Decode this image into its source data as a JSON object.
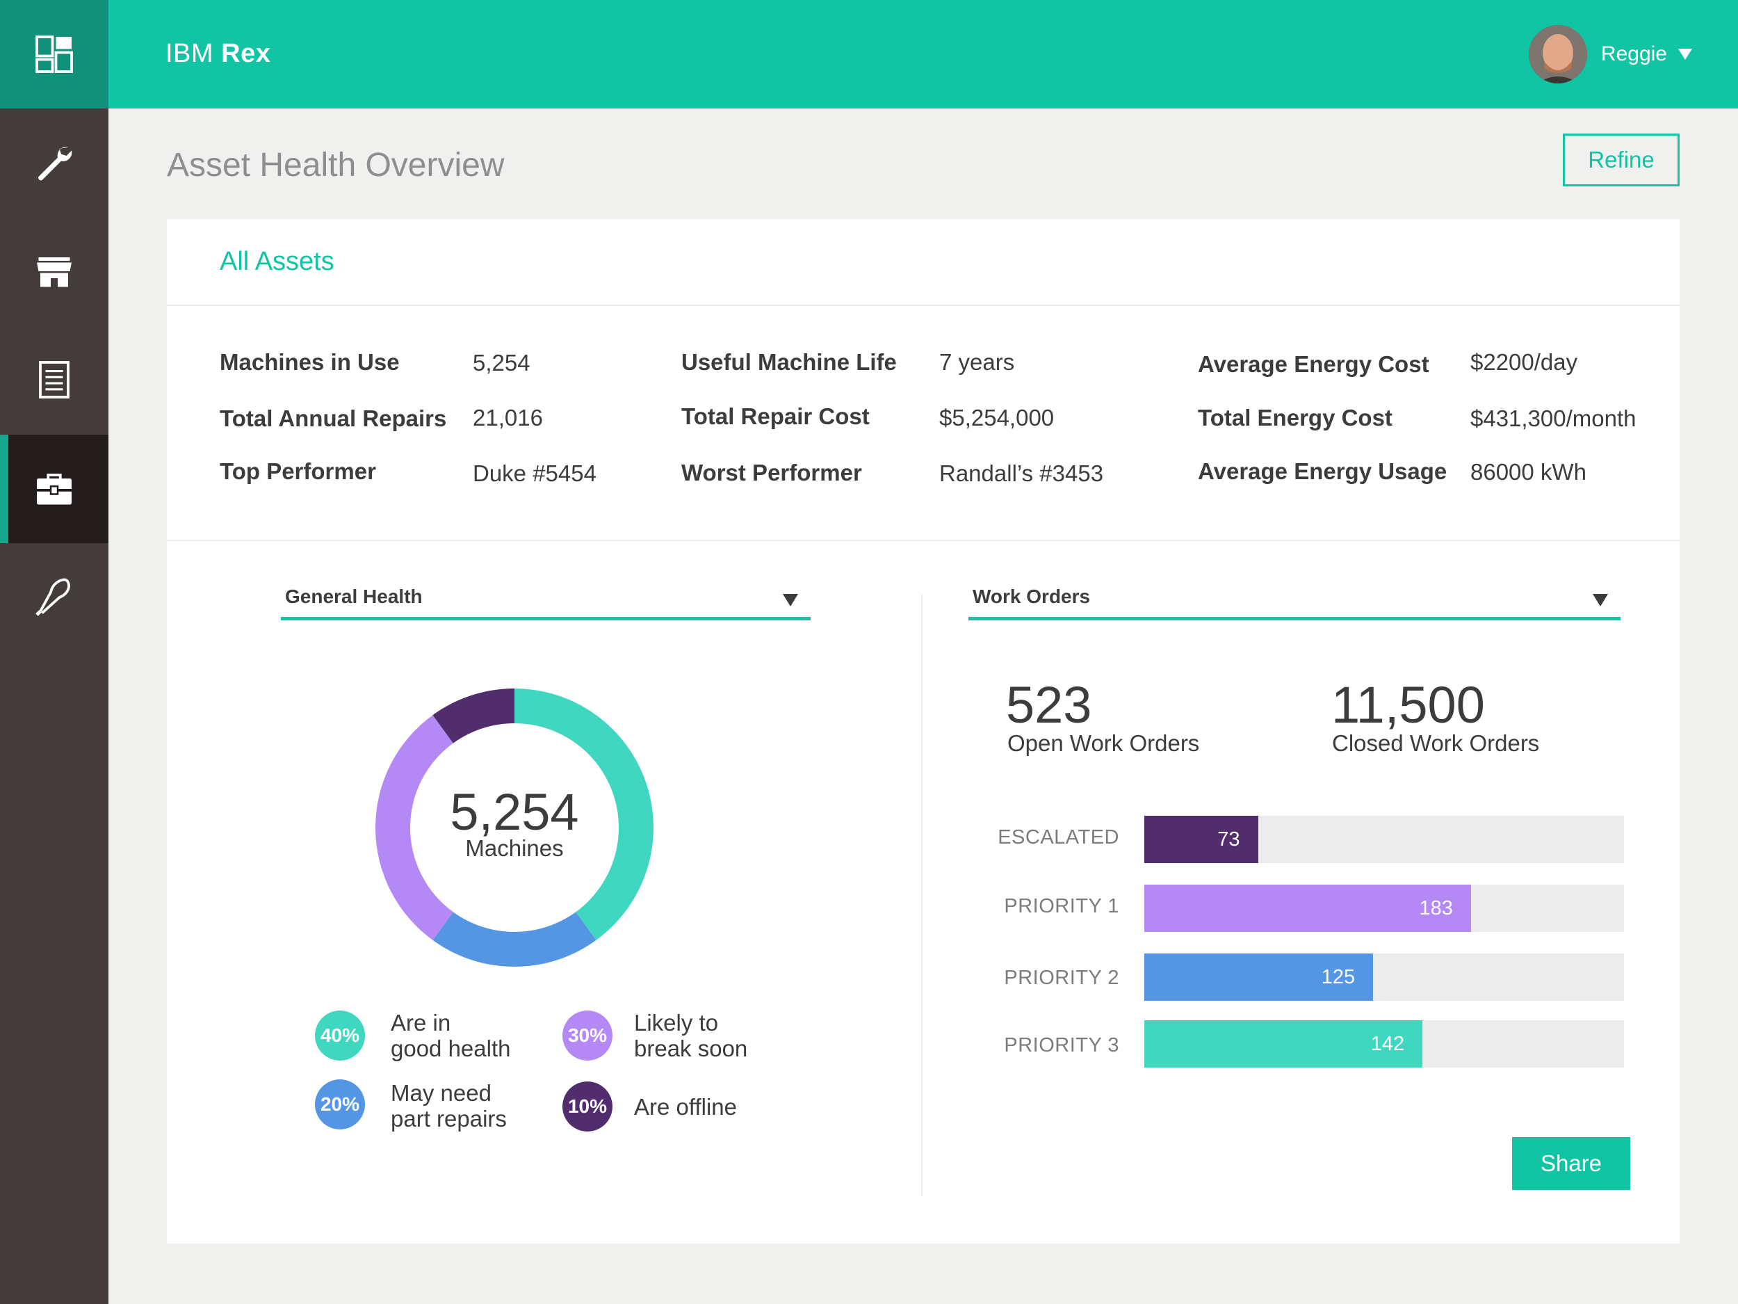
{
  "app": {
    "brand": "IBM",
    "product": "Rex"
  },
  "user": {
    "name": "Reggie"
  },
  "sidebar": {
    "items": [
      {
        "icon": "dashboard-icon"
      },
      {
        "icon": "wrench-icon"
      },
      {
        "icon": "store-icon"
      },
      {
        "icon": "clipboard-icon"
      },
      {
        "icon": "briefcase-icon",
        "active": true
      },
      {
        "icon": "whisk-icon"
      }
    ]
  },
  "page": {
    "title": "Asset Health Overview",
    "refine_label": "Refine"
  },
  "card": {
    "title": "All Assets"
  },
  "stats": [
    {
      "label": "Machines in Use",
      "value": "5,254"
    },
    {
      "label": "Total Annual Repairs",
      "value": "21,016"
    },
    {
      "label": "Top Performer",
      "value": "Duke #5454"
    },
    {
      "label": "Useful Machine Life",
      "value": "7 years"
    },
    {
      "label": "Total Repair Cost",
      "value": "$5,254,000"
    },
    {
      "label": "Worst Performer",
      "value": "Randall’s #3453"
    },
    {
      "label": "Average Energy Cost",
      "value": "$2200/day"
    },
    {
      "label": "Total Energy Cost",
      "value": "$431,300/month"
    },
    {
      "label": "Average Energy Usage",
      "value": "86000 kWh"
    }
  ],
  "health": {
    "dropdown_label": "General Health",
    "total": "5,254",
    "total_caption": "Machines",
    "segments": [
      {
        "pct_label": "40%",
        "line1": "Are in",
        "line2": "good health",
        "fraction": 0.4,
        "color": "#40d7c0"
      },
      {
        "pct_label": "20%",
        "line1": "May need",
        "line2": "part repairs",
        "fraction": 0.2,
        "color": "#5596e4"
      },
      {
        "pct_label": "30%",
        "line1": "Likely to",
        "line2": "break soon",
        "fraction": 0.3,
        "color": "#b589f5"
      },
      {
        "pct_label": "10%",
        "line1": "Are offline",
        "line2": "",
        "fraction": 0.1,
        "color": "#522d6d"
      }
    ]
  },
  "work_orders": {
    "dropdown_label": "Work Orders",
    "open": {
      "value": "523",
      "caption": "Open Work Orders"
    },
    "closed": {
      "value": "11,500",
      "caption": "Closed Work Orders"
    },
    "bars": [
      {
        "label": "ESCALATED",
        "value": "73",
        "fraction": 0.237,
        "color": "#522d6d"
      },
      {
        "label": "PRIORITY 1",
        "value": "183",
        "fraction": 0.681,
        "color": "#b589f5"
      },
      {
        "label": "PRIORITY 2",
        "value": "125",
        "fraction": 0.477,
        "color": "#5596e4"
      },
      {
        "label": "PRIORITY 3",
        "value": "142",
        "fraction": 0.58,
        "color": "#40d7c0"
      }
    ],
    "share_label": "Share"
  }
}
